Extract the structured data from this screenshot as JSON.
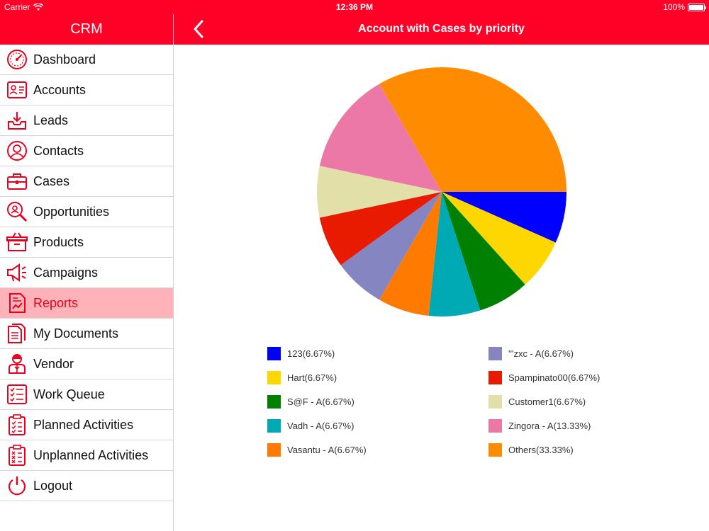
{
  "status": {
    "carrier": "Carrier",
    "time": "12:36 PM",
    "battery": "100%"
  },
  "sidebar": {
    "title": "CRM",
    "items": [
      {
        "label": "Dashboard",
        "icon": "dashboard-icon"
      },
      {
        "label": "Accounts",
        "icon": "accounts-icon"
      },
      {
        "label": "Leads",
        "icon": "leads-icon"
      },
      {
        "label": "Contacts",
        "icon": "contacts-icon"
      },
      {
        "label": "Cases",
        "icon": "cases-icon"
      },
      {
        "label": "Opportunities",
        "icon": "opportunities-icon"
      },
      {
        "label": "Products",
        "icon": "products-icon"
      },
      {
        "label": "Campaigns",
        "icon": "campaigns-icon"
      },
      {
        "label": "Reports",
        "icon": "reports-icon",
        "active": true
      },
      {
        "label": "My Documents",
        "icon": "documents-icon"
      },
      {
        "label": "Vendor",
        "icon": "vendor-icon"
      },
      {
        "label": "Work Queue",
        "icon": "work-queue-icon"
      },
      {
        "label": "Planned Activities",
        "icon": "planned-activities-icon"
      },
      {
        "label": "Unplanned Activities",
        "icon": "unplanned-activities-icon"
      },
      {
        "label": "Logout",
        "icon": "logout-icon"
      }
    ]
  },
  "header": {
    "title": "Account with Cases by priority"
  },
  "colors": {
    "brand": "#ff0026",
    "active_bg": "#ffb3b9"
  },
  "chart_data": {
    "type": "pie",
    "slices": [
      {
        "name": "123",
        "label": "123(6.67%)",
        "value": 6.67,
        "color": "#0000ff"
      },
      {
        "name": "Hart",
        "label": "Hart(6.67%)",
        "value": 6.67,
        "color": "#ffd700"
      },
      {
        "name": "S@F - A",
        "label": "S@F - A(6.67%)",
        "value": 6.67,
        "color": "#008000"
      },
      {
        "name": "Vadh - A",
        "label": "Vadh - A(6.67%)",
        "value": 6.67,
        "color": "#00aab4"
      },
      {
        "name": "Vasantu - A",
        "label": "Vasantu - A(6.67%)",
        "value": 6.67,
        "color": "#ff7a00"
      },
      {
        "name": "'''zxc - A",
        "label": "'''zxc - A(6.67%)",
        "value": 6.67,
        "color": "#8585c2"
      },
      {
        "name": "Spampinato00",
        "label": "Spampinato00(6.67%)",
        "value": 6.67,
        "color": "#e81a00"
      },
      {
        "name": "Customer1",
        "label": "Customer1(6.67%)",
        "value": 6.67,
        "color": "#e2e0a8"
      },
      {
        "name": "Zingora - A",
        "label": "Zingora - A(13.33%)",
        "value": 13.33,
        "color": "#ec78a8"
      },
      {
        "name": "Others",
        "label": "Others(33.33%)",
        "value": 33.33,
        "color": "#ff8c00"
      }
    ],
    "legend": "bottom, two columns"
  }
}
